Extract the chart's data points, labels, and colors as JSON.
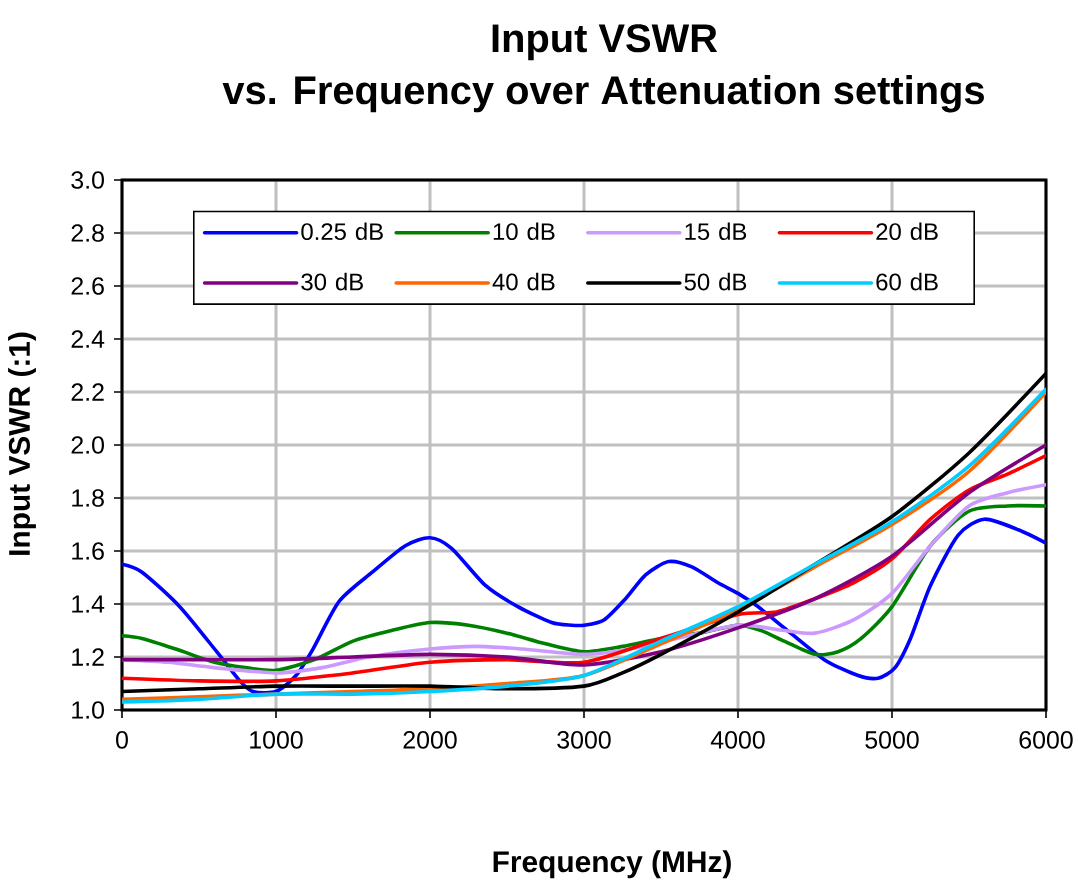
{
  "chart_data": {
    "type": "line",
    "title": "Input VSWR",
    "subtitle": "vs. Frequency over Attenuation settings",
    "xlabel": "Frequency (MHz)",
    "ylabel": "Input VSWR (:1)",
    "xlim": [
      0,
      6000
    ],
    "xticks": [
      0,
      1000,
      2000,
      3000,
      4000,
      5000,
      6000
    ],
    "ylim": [
      1,
      3
    ],
    "yticks": [
      {
        "value": 1,
        "label": "1.0"
      },
      1.2,
      1.4,
      1.6,
      1.8,
      {
        "value": 2,
        "label": "2.0"
      },
      2.2,
      2.4,
      2.6,
      2.8,
      {
        "value": 3,
        "label": "3.0"
      }
    ],
    "grid": true,
    "legend": "top",
    "line_style": "solid",
    "series": [
      {
        "name": "0.25 dB",
        "color": "#0000ff",
        "x": [
          0,
          130,
          375,
          615,
          765,
          850,
          1000,
          1130,
          1240,
          1410,
          1625,
          1840,
          2000,
          2140,
          2360,
          2570,
          2790,
          2920,
          3000,
          3130,
          3270,
          3400,
          3550,
          3700,
          3870,
          4000,
          4130,
          4300,
          4560,
          4780,
          4910,
          5020,
          5120,
          5250,
          5430,
          5600,
          5820,
          6000
        ],
        "values": [
          1.55,
          1.52,
          1.39,
          1.22,
          1.11,
          1.07,
          1.07,
          1.13,
          1.23,
          1.41,
          1.52,
          1.62,
          1.65,
          1.61,
          1.47,
          1.39,
          1.33,
          1.32,
          1.32,
          1.34,
          1.42,
          1.51,
          1.56,
          1.54,
          1.48,
          1.44,
          1.39,
          1.31,
          1.19,
          1.13,
          1.12,
          1.16,
          1.27,
          1.47,
          1.66,
          1.72,
          1.68,
          1.63
        ]
      },
      {
        "name": "10 dB",
        "color": "#008000",
        "x": [
          0,
          130,
          350,
          600,
          800,
          1000,
          1250,
          1500,
          1750,
          2000,
          2250,
          2500,
          2750,
          3000,
          3250,
          3500,
          3750,
          4000,
          4150,
          4300,
          4500,
          4650,
          4800,
          5000,
          5250,
          5500,
          5750,
          6000
        ],
        "values": [
          1.28,
          1.27,
          1.23,
          1.18,
          1.16,
          1.15,
          1.19,
          1.26,
          1.3,
          1.33,
          1.32,
          1.29,
          1.25,
          1.22,
          1.24,
          1.27,
          1.29,
          1.32,
          1.3,
          1.26,
          1.21,
          1.22,
          1.27,
          1.39,
          1.62,
          1.75,
          1.77,
          1.77
        ]
      },
      {
        "name": "15 dB",
        "color": "#cc99ff",
        "x": [
          0,
          300,
          600,
          1000,
          1300,
          1600,
          2000,
          2300,
          2600,
          3000,
          3300,
          3600,
          4000,
          4300,
          4500,
          4750,
          5000,
          5250,
          5500,
          5750,
          6000
        ],
        "values": [
          1.19,
          1.18,
          1.16,
          1.14,
          1.16,
          1.2,
          1.23,
          1.24,
          1.23,
          1.21,
          1.23,
          1.27,
          1.32,
          1.3,
          1.29,
          1.34,
          1.44,
          1.62,
          1.77,
          1.82,
          1.85
        ]
      },
      {
        "name": "20 dB",
        "color": "#ff0000",
        "x": [
          0,
          500,
          1000,
          1500,
          2000,
          2500,
          3000,
          3500,
          4000,
          4250,
          4500,
          4750,
          5000,
          5250,
          5500,
          5750,
          6000
        ],
        "values": [
          1.12,
          1.11,
          1.11,
          1.14,
          1.18,
          1.19,
          1.18,
          1.27,
          1.36,
          1.37,
          1.42,
          1.48,
          1.57,
          1.72,
          1.83,
          1.89,
          1.96
        ]
      },
      {
        "name": "30 dB",
        "color": "#800080",
        "x": [
          0,
          500,
          1000,
          1500,
          2000,
          2500,
          3000,
          3500,
          4000,
          4500,
          5000,
          5500,
          6000
        ],
        "values": [
          1.19,
          1.19,
          1.19,
          1.2,
          1.21,
          1.2,
          1.17,
          1.22,
          1.31,
          1.42,
          1.58,
          1.82,
          2.0
        ]
      },
      {
        "name": "40 dB",
        "color": "#ff6600",
        "x": [
          0,
          500,
          1000,
          1500,
          2000,
          2500,
          3000,
          3500,
          4000,
          4500,
          5000,
          5500,
          6000
        ],
        "values": [
          1.04,
          1.05,
          1.06,
          1.07,
          1.08,
          1.1,
          1.13,
          1.25,
          1.38,
          1.54,
          1.7,
          1.9,
          2.2
        ]
      },
      {
        "name": "50 dB",
        "color": "#000000",
        "x": [
          0,
          500,
          1000,
          1500,
          2000,
          2500,
          3000,
          3250,
          3500,
          4000,
          4500,
          5000,
          5500,
          6000
        ],
        "values": [
          1.07,
          1.08,
          1.09,
          1.09,
          1.09,
          1.08,
          1.09,
          1.14,
          1.21,
          1.37,
          1.55,
          1.73,
          1.97,
          2.27
        ]
      },
      {
        "name": "60 dB",
        "color": "#00ccff",
        "x": [
          0,
          500,
          1000,
          1500,
          2000,
          2500,
          3000,
          3500,
          4000,
          4500,
          5000,
          5500,
          6000
        ],
        "values": [
          1.03,
          1.04,
          1.06,
          1.06,
          1.07,
          1.09,
          1.13,
          1.26,
          1.39,
          1.55,
          1.71,
          1.92,
          2.21
        ]
      }
    ]
  }
}
